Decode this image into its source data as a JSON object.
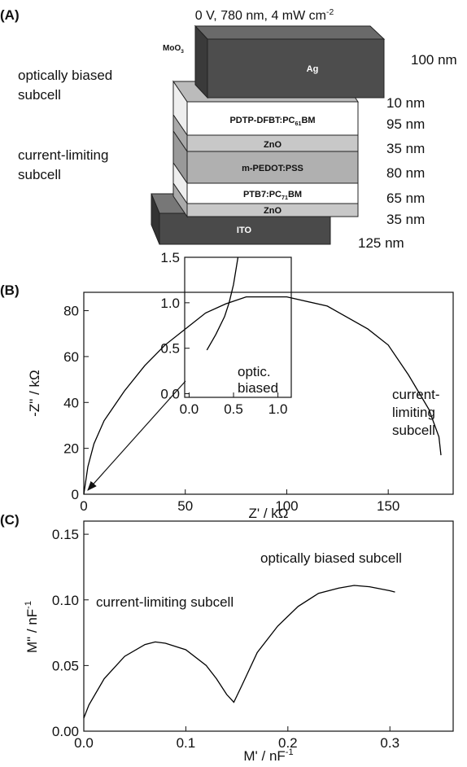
{
  "panel_a": {
    "label": "(A)",
    "title": {
      "text": "0 V, 780 nm, 4 mW cm",
      "sup": "-2"
    },
    "side_labels": [
      [
        "optically biased",
        "subcell"
      ],
      [
        "current-limiting",
        "subcell"
      ]
    ],
    "layers": [
      {
        "name": "Ag",
        "thickness": "100 nm"
      },
      {
        "name": {
          "text": "MoO",
          "sub": "3"
        },
        "thickness": "10 nm"
      },
      {
        "name": {
          "text": "PDTP-DFBT:PC",
          "sub": "61",
          "after": "BM"
        },
        "thickness": "95 nm"
      },
      {
        "name": "ZnO",
        "thickness": "35 nm"
      },
      {
        "name": "m-PEDOT:PSS",
        "thickness": "80 nm"
      },
      {
        "name": {
          "text": "PTB7:PC",
          "sub": "71",
          "after": "BM"
        },
        "thickness": "65 nm"
      },
      {
        "name": "ZnO",
        "thickness": "35 nm"
      },
      {
        "name": "ITO",
        "thickness": "125 nm"
      }
    ]
  },
  "chart_data": [
    {
      "type": "line",
      "panel": "(B)",
      "color": "#000000",
      "x_label": {
        "text": "Z' / kΩ"
      },
      "y_label": {
        "text": "-Z\" / kΩ"
      },
      "x": [
        0,
        2,
        5,
        10,
        20,
        30,
        40,
        50,
        60,
        70,
        80,
        100,
        120,
        140,
        150,
        160,
        170,
        175,
        176
      ],
      "values": [
        0,
        12,
        22,
        32,
        45,
        56,
        65,
        72,
        79,
        83,
        86,
        86,
        82,
        72,
        65,
        52,
        37,
        25,
        17
      ],
      "xlim": [
        0,
        182
      ],
      "ylim": [
        0,
        88
      ],
      "xticks": [
        0,
        50,
        100,
        150
      ],
      "yticks": [
        0,
        20,
        40,
        60,
        80
      ],
      "annotations": [
        [
          "current-",
          "limiting",
          "subcell"
        ]
      ]
    },
    {
      "type": "line",
      "color": "#000000",
      "x": [
        0.2,
        0.3,
        0.4,
        0.45,
        0.5,
        0.55
      ],
      "values": [
        0.48,
        0.65,
        0.85,
        1.0,
        1.2,
        1.5
      ],
      "xlim": [
        -0.05,
        1.15
      ],
      "ylim": [
        -0.04,
        1.5
      ],
      "xticks": [
        {
          "value": 0,
          "label": "0.0"
        },
        0.5,
        {
          "value": 1,
          "label": "1.0"
        }
      ],
      "yticks": [
        {
          "value": 0,
          "label": "0.0"
        },
        0.5,
        {
          "value": 1,
          "label": "1.0"
        },
        1.5
      ],
      "annotations": [
        [
          "optic.",
          "biased"
        ]
      ]
    },
    {
      "type": "line",
      "panel": "(C)",
      "color": "#000000",
      "x_label": {
        "text": "M' / nF",
        "sup": "-1"
      },
      "y_label": {
        "text": "M\" / nF",
        "sup": "-1"
      },
      "x": [
        0,
        0.005,
        0.02,
        0.04,
        0.06,
        0.07,
        0.08,
        0.1,
        0.12,
        0.13,
        0.14,
        0.147,
        0.155,
        0.17,
        0.19,
        0.21,
        0.23,
        0.25,
        0.265,
        0.28,
        0.3,
        0.305
      ],
      "values": [
        0.01,
        0.02,
        0.04,
        0.057,
        0.066,
        0.068,
        0.067,
        0.062,
        0.05,
        0.04,
        0.028,
        0.022,
        0.035,
        0.06,
        0.08,
        0.095,
        0.105,
        0.109,
        0.111,
        0.11,
        0.107,
        0.106
      ],
      "xlim": [
        0,
        0.362
      ],
      "ylim": [
        0,
        0.16
      ],
      "xticks": [
        {
          "value": 0,
          "label": "0.0"
        },
        0.1,
        0.2,
        0.3
      ],
      "yticks": [
        {
          "value": 0,
          "label": "0.00"
        },
        0.05,
        {
          "value": 0.1,
          "label": "0.10"
        },
        0.15
      ],
      "annotations": [
        "current-limiting subcell",
        "optically biased subcell"
      ]
    }
  ]
}
